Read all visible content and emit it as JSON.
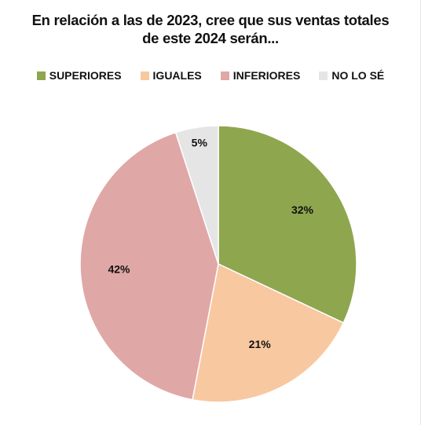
{
  "chart_data": {
    "type": "pie",
    "title_lines": [
      "En relación a las de 2023, cree que sus ventas totales",
      "de este 2024 serán..."
    ],
    "legend_position": "top",
    "slices": [
      {
        "name": "SUPERIORES",
        "value": 32,
        "label": "32%",
        "color": "#8ea64e"
      },
      {
        "name": "IGUALES",
        "value": 21,
        "label": "21%",
        "color": "#f8c8a0"
      },
      {
        "name": "INFERIORES",
        "value": 42,
        "label": "42%",
        "color": "#e0a7a7"
      },
      {
        "name": "NO LO SÉ",
        "value": 5,
        "label": "5%",
        "color": "#e5e5e5"
      }
    ]
  }
}
